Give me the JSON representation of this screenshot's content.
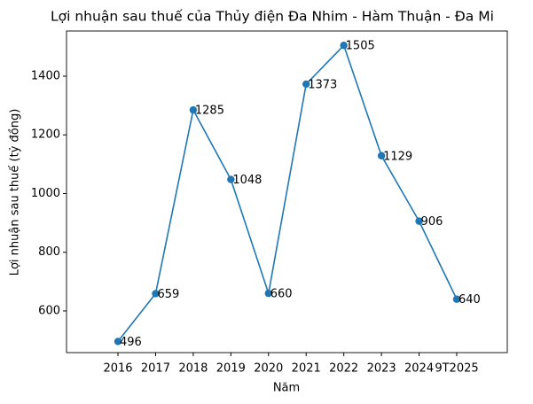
{
  "chart_data": {
    "type": "line",
    "title": "Lợi nhuận sau thuế của Thủy điện Đa Nhim - Hàm Thuận - Đa Mi",
    "x_label": "Năm",
    "y_label": "Lợi nhuận sau thuế (tỷ đồng)",
    "categories": [
      "2016",
      "2017",
      "2018",
      "2019",
      "2020",
      "2021",
      "2022",
      "2023",
      "2024",
      "9T2025"
    ],
    "series": [
      {
        "name": "Lợi nhuận sau thuế",
        "color": "#1f77b4",
        "values": [
          496,
          659,
          1285,
          1048,
          660,
          1373,
          1505,
          1129,
          906,
          640
        ]
      }
    ],
    "ylim": [
      458,
      1554
    ],
    "yticks": [
      600,
      800,
      1000,
      1200,
      1400
    ],
    "grid": false
  }
}
